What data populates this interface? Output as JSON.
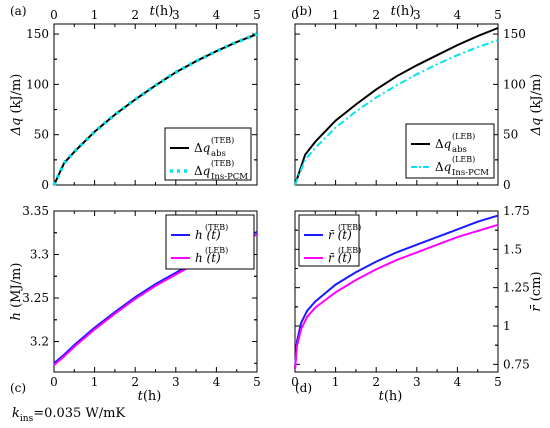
{
  "footnote": {
    "k": "k",
    "sub": "ins",
    "rest": "=0.035 W/mK"
  },
  "chart_data": [
    {
      "id": "a",
      "panel_label": "(a)",
      "type": "line",
      "x_axis": {
        "label": "t(h)",
        "position": "top",
        "range": [
          0,
          5
        ],
        "ticks": [
          0,
          1,
          2,
          3,
          4,
          5
        ]
      },
      "y_axis": {
        "label": "Δq (kJ/m)",
        "side": "left",
        "range": [
          0,
          160
        ],
        "ticks": [
          0,
          50,
          100,
          150
        ]
      },
      "legend": {
        "position": "bottom-right"
      },
      "series": [
        {
          "name": "Δq_abs^(TEB)",
          "main": "Δq",
          "sub": "abs",
          "sup": "(TEB)",
          "color": "#000000",
          "style": "solid",
          "x": [
            0,
            0.25,
            0.5,
            1,
            1.5,
            2,
            2.5,
            3,
            3.5,
            4,
            4.5,
            5
          ],
          "y": [
            0,
            22,
            33,
            53,
            70,
            85,
            99,
            112,
            123,
            133,
            142,
            150
          ]
        },
        {
          "name": "Δq_Ins-PCM^(TEB)",
          "main": "Δq",
          "sub": "Ins-PCM",
          "sup": "(TEB)",
          "color": "#00e5ee",
          "style": "dotted",
          "x": [
            0,
            0.25,
            0.5,
            1,
            1.5,
            2,
            2.5,
            3,
            3.5,
            4,
            4.5,
            5
          ],
          "y": [
            0,
            22,
            33,
            53,
            70,
            85,
            99,
            112,
            123,
            133,
            142,
            150
          ]
        }
      ]
    },
    {
      "id": "b",
      "panel_label": "(b)",
      "type": "line",
      "x_axis": {
        "label": "t(h)",
        "position": "top",
        "range": [
          0,
          5
        ],
        "ticks": [
          0,
          1,
          2,
          3,
          4,
          5
        ]
      },
      "y_axis": {
        "label": "Δq (kJ/m)",
        "side": "right",
        "range": [
          0,
          160
        ],
        "ticks": [
          0,
          50,
          100,
          150
        ]
      },
      "legend": {
        "position": "bottom-right"
      },
      "series": [
        {
          "name": "Δq_abs^(LEB)",
          "main": "Δq",
          "sub": "abs",
          "sup": "(LEB)",
          "color": "#000000",
          "style": "solid",
          "x": [
            0,
            0.25,
            0.5,
            1,
            1.5,
            2,
            2.5,
            3,
            3.5,
            4,
            4.5,
            5
          ],
          "y": [
            0,
            30,
            43,
            64,
            80,
            95,
            108,
            119,
            129,
            139,
            148,
            156
          ]
        },
        {
          "name": "Δq_Ins-PCM^(LEB)",
          "main": "Δq",
          "sub": "Ins-PCM",
          "sup": "(LEB)",
          "color": "#00e5ee",
          "style": "dashdot",
          "x": [
            0,
            0.25,
            0.5,
            1,
            1.5,
            2,
            2.5,
            3,
            3.5,
            4,
            4.5,
            5
          ],
          "y": [
            0,
            25,
            37,
            57,
            73,
            87,
            99,
            110,
            120,
            129,
            137,
            144
          ]
        }
      ]
    },
    {
      "id": "c",
      "panel_label": "(c)",
      "type": "line",
      "x_axis": {
        "label": "t(h)",
        "position": "bottom",
        "range": [
          0,
          5
        ],
        "ticks": [
          0,
          1,
          2,
          3,
          4,
          5
        ]
      },
      "y_axis": {
        "label": "h (MJ/m)",
        "side": "left",
        "range": [
          3.165,
          3.35
        ],
        "ticks": [
          3.2,
          3.25,
          3.3,
          3.35
        ]
      },
      "legend": {
        "position": "top-right"
      },
      "series": [
        {
          "name": "h(t)^(TEB)",
          "main": "h (t)",
          "sub": "",
          "sup": "(TEB)",
          "color": "#1a1aff",
          "style": "solid",
          "x": [
            0,
            0.25,
            0.5,
            1,
            1.5,
            2,
            2.5,
            3,
            3.5,
            4,
            4.5,
            5
          ],
          "y": [
            3.175,
            3.185,
            3.196,
            3.216,
            3.234,
            3.251,
            3.266,
            3.279,
            3.292,
            3.304,
            3.315,
            3.326
          ]
        },
        {
          "name": "h(t)^(LEB)",
          "main": "h (t)",
          "sub": "",
          "sup": "(LEB)",
          "color": "#ff00ff",
          "style": "solid",
          "x": [
            0,
            0.25,
            0.5,
            1,
            1.5,
            2,
            2.5,
            3,
            3.5,
            4,
            4.5,
            5
          ],
          "y": [
            3.173,
            3.183,
            3.194,
            3.214,
            3.232,
            3.249,
            3.264,
            3.277,
            3.29,
            3.302,
            3.313,
            3.323
          ]
        }
      ]
    },
    {
      "id": "d",
      "panel_label": "(d)",
      "type": "line",
      "x_axis": {
        "label": "t(h)",
        "position": "bottom",
        "range": [
          0,
          5
        ],
        "ticks": [
          0,
          1,
          2,
          3,
          4,
          5
        ]
      },
      "y_axis": {
        "label": "r̄ (cm)",
        "side": "right",
        "range": [
          0.7,
          1.75
        ],
        "ticks": [
          0.75,
          1,
          1.25,
          1.5,
          1.75
        ]
      },
      "legend": {
        "position": "top-left"
      },
      "series": [
        {
          "name": "r̄(t)^(TEB)",
          "main": "r̄ (t)",
          "sub": "",
          "sup": "(TEB)",
          "color": "#1a1aff",
          "style": "solid",
          "x": [
            0,
            0.05,
            0.15,
            0.3,
            0.5,
            1,
            1.5,
            2,
            2.5,
            3,
            3.5,
            4,
            4.5,
            5
          ],
          "y": [
            0.72,
            0.9,
            1.02,
            1.1,
            1.16,
            1.27,
            1.35,
            1.42,
            1.48,
            1.53,
            1.58,
            1.63,
            1.68,
            1.72
          ]
        },
        {
          "name": "r̄(t)^(LEB)",
          "main": "r̄ (t)",
          "sub": "",
          "sup": "(LEB)",
          "color": "#ff00ff",
          "style": "solid",
          "x": [
            0,
            0.05,
            0.15,
            0.3,
            0.5,
            1,
            1.5,
            2,
            2.5,
            3,
            3.5,
            4,
            4.5,
            5
          ],
          "y": [
            0.72,
            0.87,
            0.98,
            1.06,
            1.12,
            1.22,
            1.3,
            1.37,
            1.43,
            1.48,
            1.53,
            1.58,
            1.62,
            1.66
          ]
        }
      ]
    }
  ]
}
